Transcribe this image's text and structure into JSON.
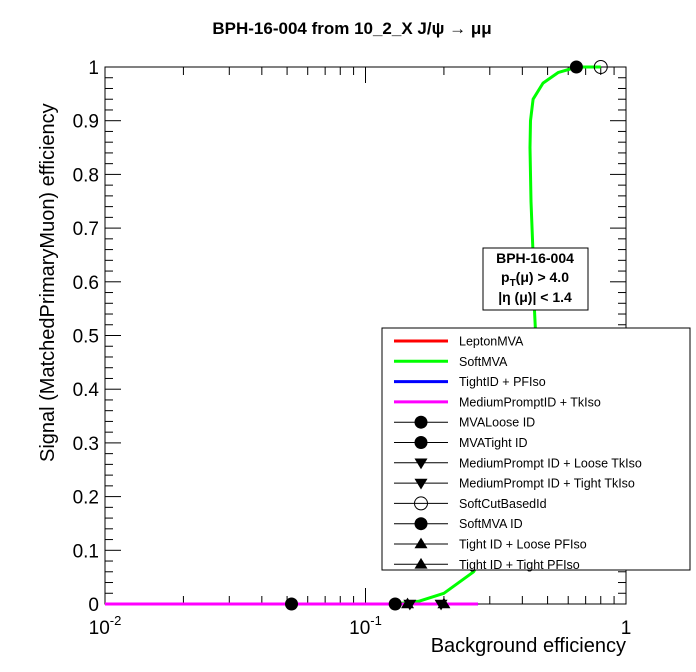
{
  "chart_data": {
    "type": "line",
    "title": "BPH-16-004 from 10_2_X J/ψ → μμ",
    "xlabel": "Background efficiency",
    "ylabel": "Signal (MatchedPrimaryMuon) efficiency",
    "xscale": "log",
    "xlim": [
      0.01,
      1
    ],
    "ylim": [
      0,
      1
    ],
    "x_ticks": [
      {
        "value": 0.01,
        "label": "10",
        "exp": "-2"
      },
      {
        "value": 0.1,
        "label": "10",
        "exp": "-1"
      },
      {
        "value": 1,
        "label": "1",
        "exp": ""
      }
    ],
    "y_ticks": [
      {
        "value": 0,
        "label": "0"
      },
      {
        "value": 0.1,
        "label": "0.1"
      },
      {
        "value": 0.2,
        "label": "0.2"
      },
      {
        "value": 0.3,
        "label": "0.3"
      },
      {
        "value": 0.4,
        "label": "0.4"
      },
      {
        "value": 0.5,
        "label": "0.5"
      },
      {
        "value": 0.6,
        "label": "0.6"
      },
      {
        "value": 0.7,
        "label": "0.7"
      },
      {
        "value": 0.8,
        "label": "0.8"
      },
      {
        "value": 0.9,
        "label": "0.9"
      },
      {
        "value": 1,
        "label": "1"
      }
    ],
    "grid": false,
    "legend_position": "bottom-right",
    "annotation": {
      "line1": "BPH-16-004",
      "line2_main": "p",
      "line2_sub": "T",
      "line2_rest": "(μ) > 4.0",
      "line3": "|η (μ)| < 1.4"
    },
    "series": [
      {
        "name": "LeptonMVA",
        "kind": "line",
        "color": "#ff0000",
        "x": [
          0.01,
          0.27
        ],
        "y": [
          0,
          0
        ]
      },
      {
        "name": "SoftMVA",
        "kind": "line",
        "color": "#00ff00",
        "x": [
          0.01,
          0.13,
          0.16,
          0.2,
          0.26,
          0.33,
          0.38,
          0.42,
          0.44,
          0.45,
          0.445,
          0.44,
          0.432,
          0.428,
          0.43,
          0.44,
          0.48,
          0.55,
          0.65,
          0.75,
          0.8
        ],
        "y": [
          0,
          0,
          0.005,
          0.02,
          0.06,
          0.15,
          0.25,
          0.35,
          0.42,
          0.5,
          0.55,
          0.65,
          0.75,
          0.85,
          0.9,
          0.94,
          0.97,
          0.99,
          1.0,
          1.0,
          1.0
        ]
      },
      {
        "name": "TightID + PFIso",
        "kind": "line",
        "color": "#0000ff",
        "x": [
          0.01,
          0.27
        ],
        "y": [
          0,
          0
        ]
      },
      {
        "name": "MediumPromptID + TkIso",
        "kind": "line",
        "color": "#ff00ff",
        "x": [
          0.01,
          0.27
        ],
        "y": [
          0,
          0
        ]
      },
      {
        "name": "MVALoose ID",
        "kind": "marker",
        "marker": "circle",
        "x": [
          0.052
        ],
        "y": [
          0
        ]
      },
      {
        "name": "MVATight ID",
        "kind": "marker",
        "marker": "circle",
        "x": [
          0.13
        ],
        "y": [
          0
        ]
      },
      {
        "name": "MediumPrompt ID + Loose TkIso",
        "kind": "marker",
        "marker": "triangle-down",
        "x": [
          0.195
        ],
        "y": [
          0
        ]
      },
      {
        "name": "MediumPrompt ID + Tight TkIso",
        "kind": "marker",
        "marker": "triangle-down",
        "x": [
          0.148
        ],
        "y": [
          0
        ]
      },
      {
        "name": "SoftCutBasedId",
        "kind": "marker",
        "marker": "circle-open",
        "x": [
          0.8
        ],
        "y": [
          1.0
        ]
      },
      {
        "name": "SoftMVA ID",
        "kind": "marker",
        "marker": "circle",
        "x": [
          0.645
        ],
        "y": [
          1.0
        ]
      },
      {
        "name": "Tight ID + Loose PFIso",
        "kind": "marker",
        "marker": "triangle-up",
        "x": [
          0.2
        ],
        "y": [
          0
        ]
      },
      {
        "name": "Tight ID + Tight PFIso",
        "kind": "marker",
        "marker": "triangle-up",
        "x": [
          0.145
        ],
        "y": [
          0
        ]
      }
    ]
  }
}
